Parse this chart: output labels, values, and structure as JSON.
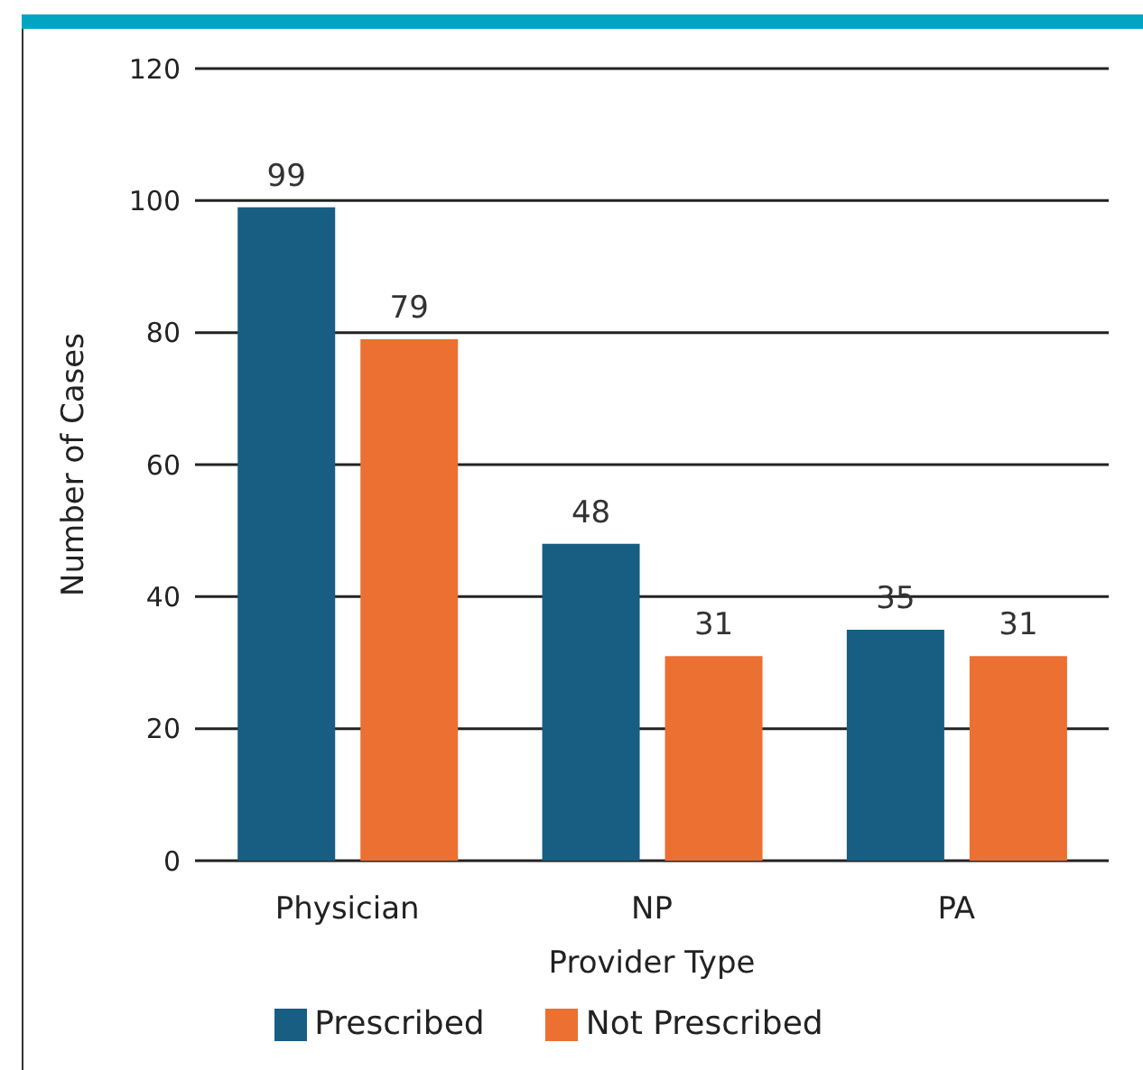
{
  "chart_data": {
    "type": "bar",
    "xlabel": "Provider Type",
    "ylabel": "Number of Cases",
    "categories": [
      "Physician",
      "NP",
      "PA"
    ],
    "series": [
      {
        "name": "Prescribed",
        "color": "#175e82",
        "values": [
          99,
          48,
          35
        ]
      },
      {
        "name": "Not Prescribed",
        "color": "#eb7031",
        "values": [
          79,
          31,
          31
        ]
      }
    ],
    "ylim": [
      0,
      120
    ],
    "yticks": [
      0,
      20,
      40,
      60,
      80,
      100,
      120
    ],
    "grid": "y",
    "legend": "bottom",
    "data_labels": true
  }
}
